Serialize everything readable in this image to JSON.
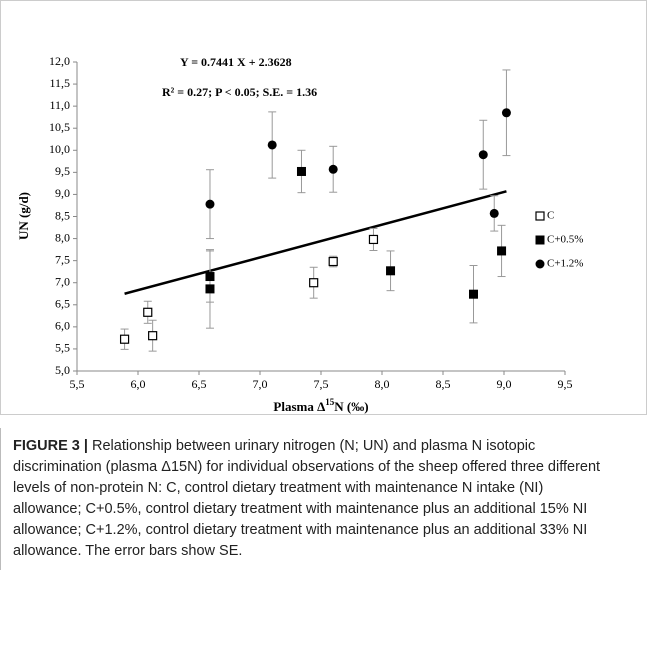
{
  "chart_data": {
    "type": "scatter",
    "annotations": [
      "Y = 0.7441 X + 2.3628",
      "R² = 0.27; P < 0.05; S.E. = 1.36"
    ],
    "ylabel": "UN (g/d)",
    "xlabel": [
      "Plasma Δ",
      "15",
      "N (‰)"
    ],
    "xlim": [
      5.5,
      9.5
    ],
    "ylim": [
      5.0,
      12.0
    ],
    "xticks": [
      {
        "value": 5.5,
        "label": "5,5"
      },
      {
        "value": 6.0,
        "label": "6,0"
      },
      {
        "value": 6.5,
        "label": "6,5"
      },
      {
        "value": 7.0,
        "label": "7,0"
      },
      {
        "value": 7.5,
        "label": "7,5"
      },
      {
        "value": 8.0,
        "label": "8,0"
      },
      {
        "value": 8.5,
        "label": "8,5"
      },
      {
        "value": 9.0,
        "label": "9,0"
      },
      {
        "value": 9.5,
        "label": "9,5"
      }
    ],
    "yticks": [
      {
        "value": 5.0,
        "label": "5,0"
      },
      {
        "value": 5.5,
        "label": "5,5"
      },
      {
        "value": 6.0,
        "label": "6,0"
      },
      {
        "value": 6.5,
        "label": "6,5"
      },
      {
        "value": 7.0,
        "label": "7,0"
      },
      {
        "value": 7.5,
        "label": "7,5"
      },
      {
        "value": 8.0,
        "label": "8,0"
      },
      {
        "value": 8.5,
        "label": "8,5"
      },
      {
        "value": 9.0,
        "label": "9,0"
      },
      {
        "value": 9.5,
        "label": "9,5"
      },
      {
        "value": 10.0,
        "label": "10,0"
      },
      {
        "value": 10.5,
        "label": "10,5"
      },
      {
        "value": 11.0,
        "label": "11,0"
      },
      {
        "value": 11.5,
        "label": "11,5"
      },
      {
        "value": 12.0,
        "label": "12,0"
      }
    ],
    "grid": false,
    "legend": "right",
    "series": [
      {
        "name": "C",
        "color": "#000000",
        "marker": "open-square",
        "x": [
          5.89,
          6.08,
          6.12,
          7.44,
          7.6,
          7.93
        ],
        "values": [
          5.72,
          6.33,
          5.8,
          7.0,
          7.48,
          7.98
        ],
        "errors": [
          0.23,
          0.25,
          0.35,
          0.35,
          0.12,
          0.25
        ]
      },
      {
        "name": "C+0.5%",
        "color": "#000000",
        "marker": "square",
        "x": [
          6.59,
          6.59,
          7.34,
          8.07,
          8.75,
          8.98
        ],
        "values": [
          7.14,
          6.86,
          9.52,
          7.27,
          6.74,
          7.72
        ],
        "errors": [
          0.58,
          0.89,
          0.48,
          0.45,
          0.65,
          0.58
        ]
      },
      {
        "name": "C+1.2%",
        "color": "#000000",
        "marker": "circle",
        "x": [
          6.59,
          7.1,
          7.6,
          8.83,
          8.92,
          9.02
        ],
        "values": [
          8.78,
          10.12,
          9.57,
          9.9,
          8.57,
          10.85
        ],
        "errors": [
          0.78,
          0.75,
          0.52,
          0.78,
          0.4,
          0.97
        ]
      }
    ],
    "trendline": {
      "color": "#000000",
      "x": [
        5.89,
        9.02
      ],
      "y": [
        6.75,
        9.07
      ]
    }
  },
  "caption": {
    "label": "FIGURE 3 |",
    "text": "Relationship between urinary nitrogen (N; UN) and plasma N isotopic discrimination (plasma Δ15N) for individual observations of the sheep offered three different levels of non-protein N: C, control dietary treatment with maintenance N intake (NI) allowance; C+0.5%, control dietary treatment with maintenance plus an additional 15% NI allowance; C+1.2%, control dietary treatment with maintenance plus an additional 33% NI allowance. The error bars show SE."
  }
}
